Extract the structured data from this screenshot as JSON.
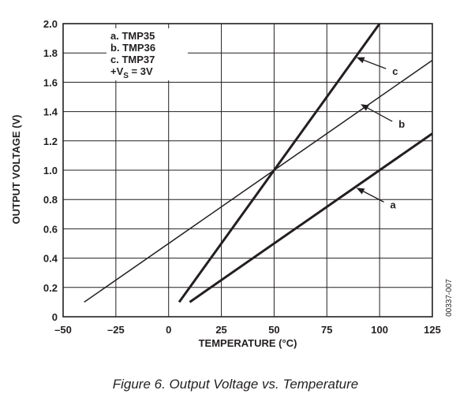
{
  "chart_data": {
    "type": "line",
    "xlabel": "TEMPERATURE (°C)",
    "ylabel": "OUTPUT VOLTAGE (V)",
    "xlim": [
      -50,
      125
    ],
    "ylim": [
      0,
      2.0
    ],
    "x_ticks": [
      -50,
      -25,
      0,
      25,
      50,
      75,
      100,
      125
    ],
    "x_tick_labels": [
      "–50",
      "–25",
      "0",
      "25",
      "50",
      "75",
      "100",
      "125"
    ],
    "y_ticks": [
      0,
      0.2,
      0.4,
      0.6,
      0.8,
      1.0,
      1.2,
      1.4,
      1.6,
      1.8,
      2.0
    ],
    "y_tick_labels": [
      "0",
      "0.2",
      "0.4",
      "0.6",
      "0.8",
      "1.0",
      "1.2",
      "1.4",
      "1.6",
      "1.8",
      "2.0"
    ],
    "grid": true,
    "legend_position": "top-left",
    "legend": {
      "entries": [
        "a.  TMP35",
        "b.  TMP36",
        "c.  TMP37"
      ],
      "supply_prefix": "+V",
      "supply_sub": "S",
      "supply_suffix": " = 3V"
    },
    "series": [
      {
        "name": "a",
        "x": [
          10,
          125
        ],
        "y": [
          0.1,
          1.25
        ],
        "weight": "bold"
      },
      {
        "name": "b",
        "x": [
          -40,
          125
        ],
        "y": [
          0.1,
          1.75
        ],
        "weight": "thin"
      },
      {
        "name": "c",
        "x": [
          5,
          100
        ],
        "y": [
          0.1,
          2.0
        ],
        "weight": "bold"
      }
    ],
    "annotations": [
      {
        "label": "a",
        "tip": [
          89,
          0.88
        ],
        "text_at": [
          105,
          0.74
        ]
      },
      {
        "label": "b",
        "tip": [
          91,
          1.45
        ],
        "text_at": [
          109,
          1.29
        ]
      },
      {
        "label": "c",
        "tip": [
          89,
          1.77
        ],
        "text_at": [
          106,
          1.65
        ]
      }
    ],
    "doc_id": "00337-007"
  },
  "caption": "Figure 6. Output Voltage vs. Temperature"
}
